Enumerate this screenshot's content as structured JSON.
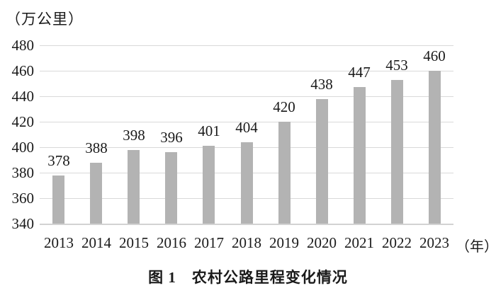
{
  "chart_data": {
    "type": "bar",
    "title": "图 1　农村公路里程变化情况",
    "unit_label": "（万公里）",
    "x_unit_label": "（年）",
    "categories": [
      "2013",
      "2014",
      "2015",
      "2016",
      "2017",
      "2018",
      "2019",
      "2020",
      "2021",
      "2022",
      "2023"
    ],
    "values": [
      378,
      388,
      398,
      396,
      401,
      404,
      420,
      438,
      447,
      453,
      460
    ],
    "ylim": [
      340,
      480
    ],
    "y_ticks": [
      340,
      360,
      380,
      400,
      420,
      440,
      460,
      480
    ],
    "grid": true,
    "legend_position": "none",
    "data_labels": true,
    "bar_color": "#b3b3b3",
    "gridline_color": "#d9d9d9",
    "text_color": "#1a1a1a",
    "xlabel": "",
    "ylabel": ""
  }
}
